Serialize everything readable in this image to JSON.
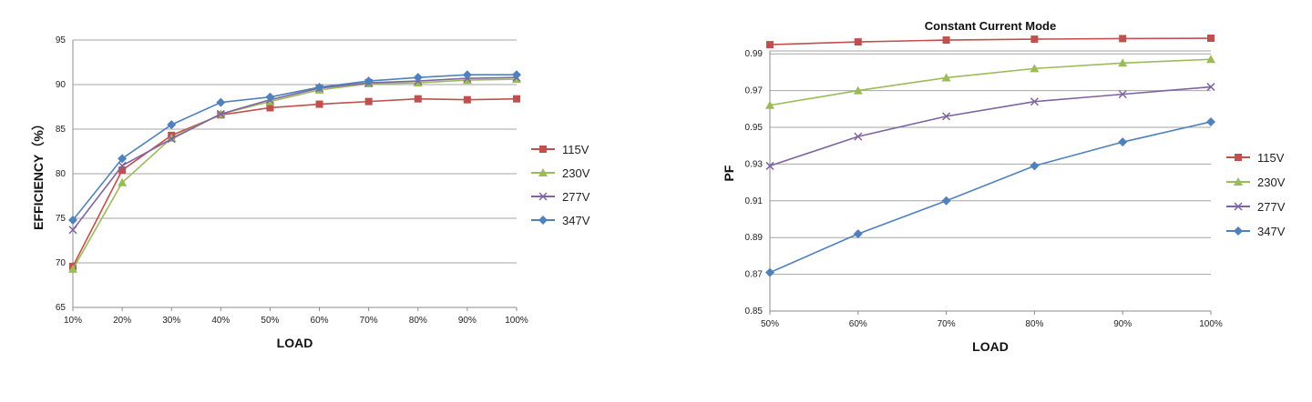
{
  "chart_data": [
    {
      "type": "line",
      "title": "",
      "xlabel": "LOAD",
      "ylabel": "EFFICIENCY（%）",
      "categories": [
        "10%",
        "20%",
        "30%",
        "40%",
        "50%",
        "60%",
        "70%",
        "80%",
        "90%",
        "100%"
      ],
      "ylim": [
        65,
        95
      ],
      "yticks": [
        "65",
        "70",
        "75",
        "80",
        "85",
        "90",
        "95"
      ],
      "grid": true,
      "legend": "right",
      "series": [
        {
          "name": "115V",
          "color": "#c0504d",
          "marker": "square",
          "values": [
            69.6,
            80.4,
            84.3,
            86.6,
            87.4,
            87.8,
            88.1,
            88.4,
            88.3,
            88.4
          ]
        },
        {
          "name": "230V",
          "color": "#9bbb59",
          "marker": "triangle",
          "values": [
            69.3,
            79.0,
            84.0,
            86.7,
            88.1,
            89.4,
            90.1,
            90.2,
            90.5,
            90.6
          ]
        },
        {
          "name": "277V",
          "color": "#8064a2",
          "marker": "x",
          "values": [
            73.7,
            80.9,
            83.9,
            86.7,
            88.3,
            89.6,
            90.2,
            90.4,
            90.7,
            90.8
          ]
        },
        {
          "name": "347V",
          "color": "#4f81bd",
          "marker": "diamond",
          "values": [
            74.8,
            81.7,
            85.5,
            88.0,
            88.6,
            89.7,
            90.4,
            90.8,
            91.1,
            91.1
          ]
        }
      ]
    },
    {
      "type": "line",
      "title": "Constant Current Mode",
      "xlabel": "LOAD",
      "ylabel": "PF",
      "categories": [
        "50%",
        "60%",
        "70%",
        "80%",
        "90%",
        "100%"
      ],
      "ylim": [
        0.85,
        1.0
      ],
      "yticks": [
        "0.85",
        "0.87",
        "0.89",
        "0.91",
        "0.93",
        "0.95",
        "0.97",
        "0.99"
      ],
      "grid": true,
      "legend": "right",
      "series": [
        {
          "name": "115V",
          "color": "#c0504d",
          "marker": "square",
          "values": [
            0.995,
            0.9965,
            0.9975,
            0.998,
            0.9983,
            0.9985
          ]
        },
        {
          "name": "230V",
          "color": "#9bbb59",
          "marker": "triangle",
          "values": [
            0.962,
            0.97,
            0.977,
            0.982,
            0.985,
            0.987
          ]
        },
        {
          "name": "277V",
          "color": "#8064a2",
          "marker": "x",
          "values": [
            0.929,
            0.945,
            0.956,
            0.964,
            0.968,
            0.972
          ]
        },
        {
          "name": "347V",
          "color": "#4f81bd",
          "marker": "diamond",
          "values": [
            0.871,
            0.892,
            0.91,
            0.929,
            0.942,
            0.953
          ]
        }
      ]
    }
  ]
}
